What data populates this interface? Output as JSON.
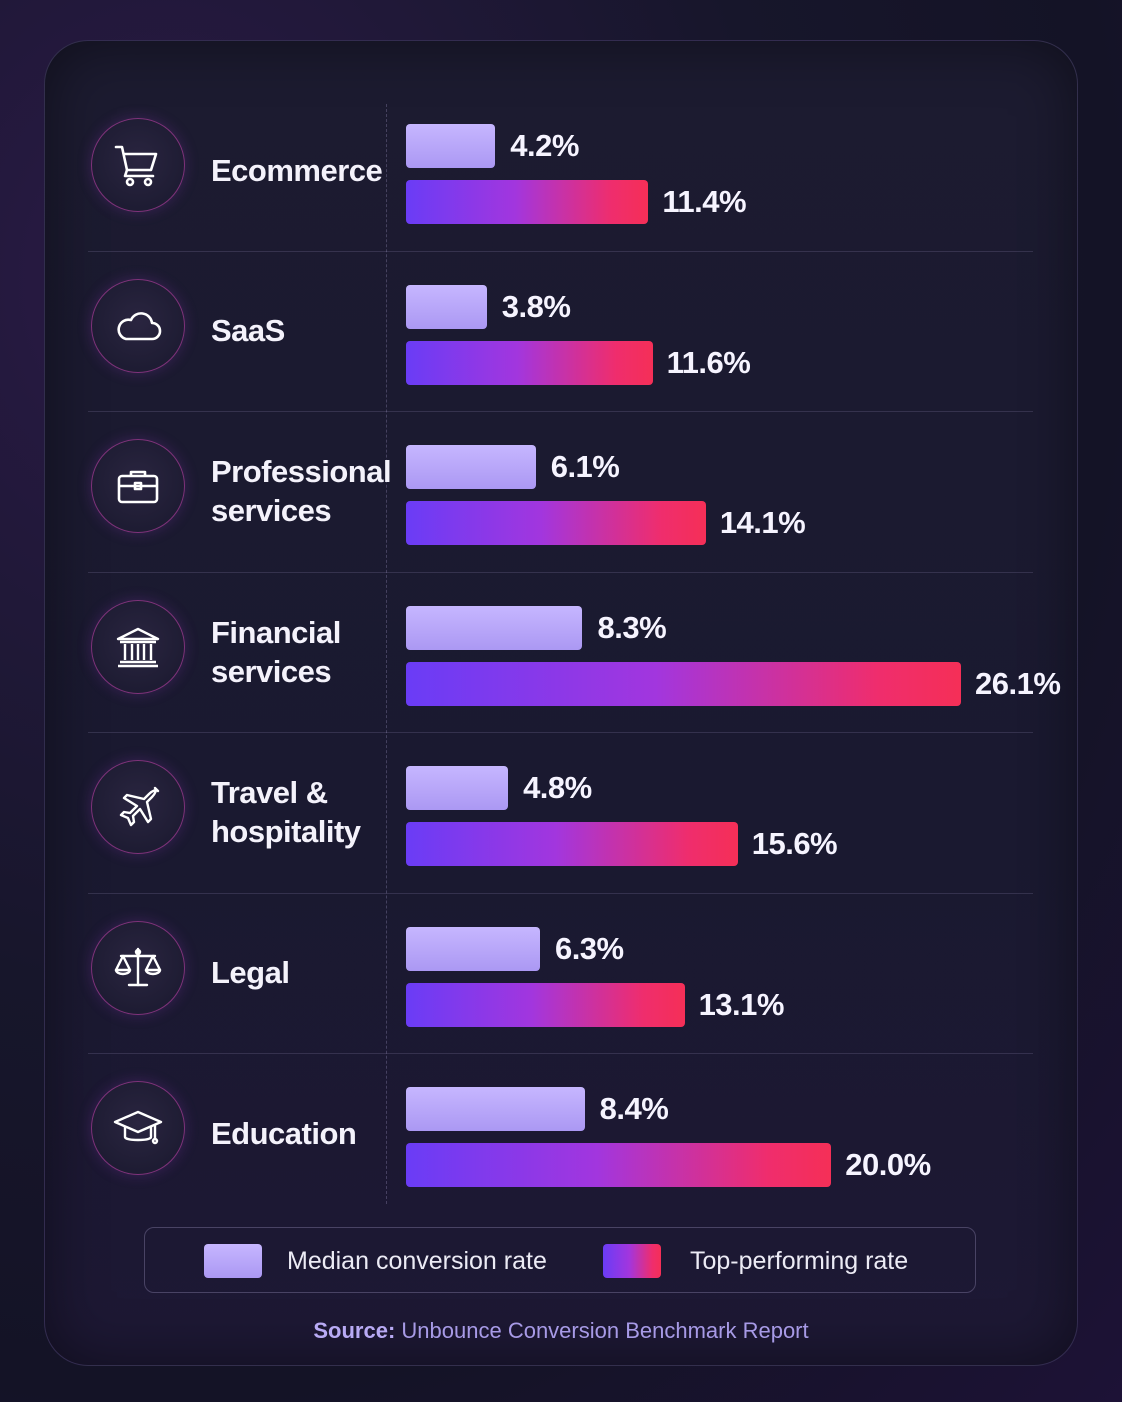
{
  "chart_data": {
    "type": "bar",
    "orientation": "horizontal",
    "categories": [
      "Ecommerce",
      "SaaS",
      "Professional services",
      "Financial services",
      "Travel & hospitality",
      "Legal",
      "Education"
    ],
    "series": [
      {
        "name": "Median conversion rate",
        "values": [
          4.2,
          3.8,
          6.1,
          8.3,
          4.8,
          6.3,
          8.4
        ],
        "color": "#b9a6fb"
      },
      {
        "name": "Top-performing rate",
        "values": [
          11.4,
          11.6,
          14.1,
          26.1,
          15.6,
          13.1,
          20.0
        ],
        "color_start": "#6a3cf6",
        "color_end": "#f52f57"
      }
    ],
    "value_labels": {
      "median": [
        "4.2%",
        "3.8%",
        "6.1%",
        "8.3%",
        "4.8%",
        "6.3%",
        "8.4%"
      ],
      "top": [
        "11.4%",
        "11.6%",
        "14.1%",
        "26.1%",
        "15.6%",
        "13.1%",
        "20.0%"
      ]
    },
    "xlim": [
      0,
      26.1
    ],
    "legend": {
      "position": "bottom",
      "items": [
        "Median conversion rate",
        "Top-performing rate"
      ]
    },
    "source": {
      "label": "Source:",
      "text": "Unbounce Conversion Benchmark Report"
    }
  },
  "rows": [
    {
      "label_lines": [
        "Ecommerce"
      ],
      "icon": "shopping-cart-icon"
    },
    {
      "label_lines": [
        "SaaS"
      ],
      "icon": "cloud-icon"
    },
    {
      "label_lines": [
        "Professional",
        "services"
      ],
      "icon": "briefcase-icon"
    },
    {
      "label_lines": [
        "Financial",
        "services"
      ],
      "icon": "bank-icon"
    },
    {
      "label_lines": [
        "Travel &",
        "hospitality"
      ],
      "icon": "airplane-icon"
    },
    {
      "label_lines": [
        "Legal"
      ],
      "icon": "scales-icon"
    },
    {
      "label_lines": [
        "Education"
      ],
      "icon": "graduation-cap-icon"
    }
  ]
}
